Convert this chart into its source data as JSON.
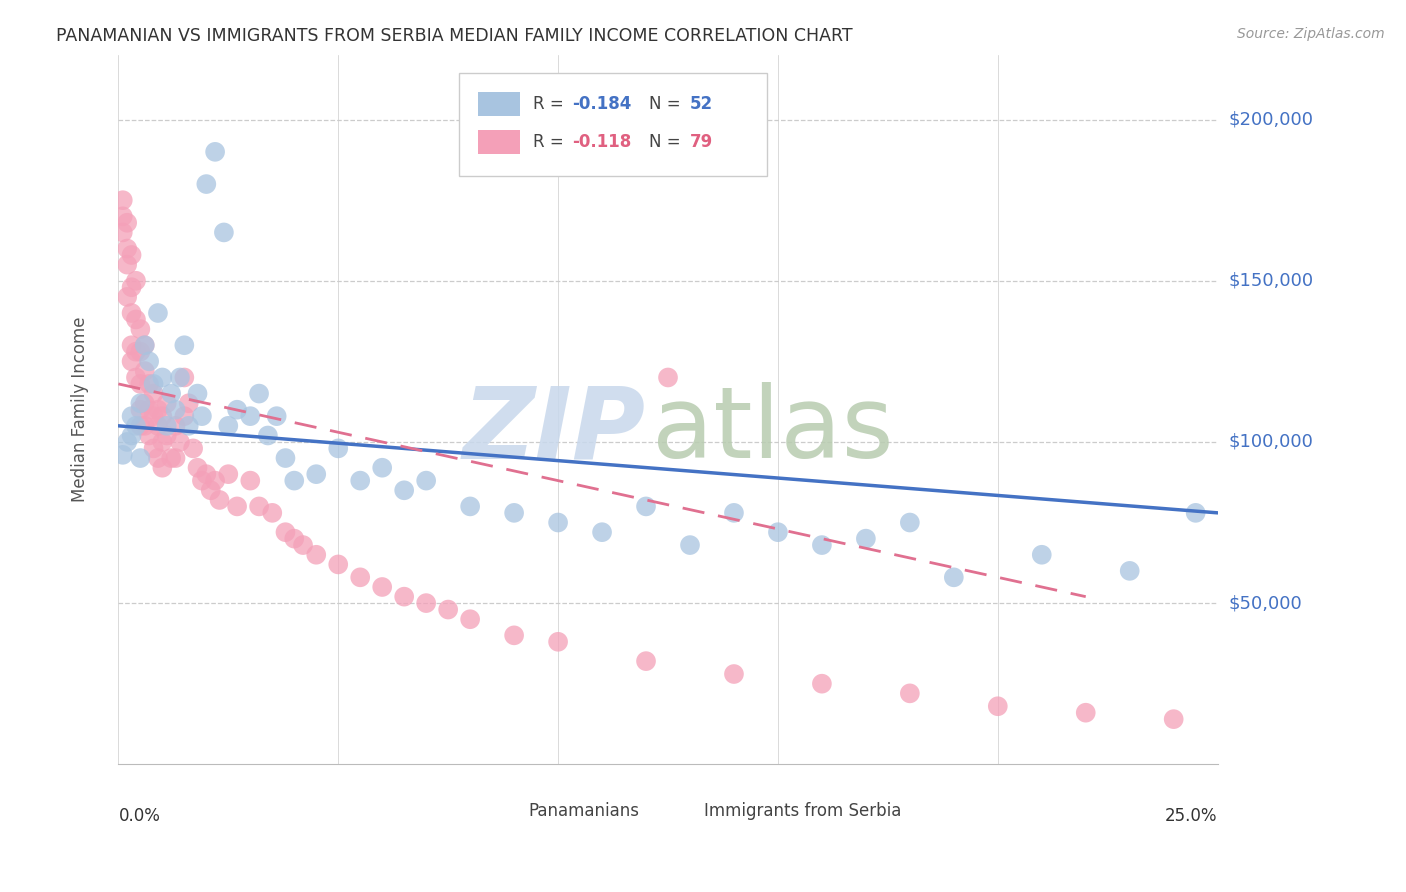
{
  "title": "PANAMANIAN VS IMMIGRANTS FROM SERBIA MEDIAN FAMILY INCOME CORRELATION CHART",
  "source": "Source: ZipAtlas.com",
  "ylabel": "Median Family Income",
  "ytick_labels": [
    "$50,000",
    "$100,000",
    "$150,000",
    "$200,000"
  ],
  "ytick_values": [
    50000,
    100000,
    150000,
    200000
  ],
  "xlim": [
    0.0,
    0.25
  ],
  "ylim": [
    0,
    220000
  ],
  "blue_color": "#a8c4e0",
  "pink_color": "#f4a0b8",
  "trendline_blue_color": "#4472c4",
  "trendline_pink_color": "#e07090",
  "watermark_zip_color": "#c8d8ec",
  "watermark_atlas_color": "#b8ccb0",
  "panamanian_x": [
    0.001,
    0.002,
    0.003,
    0.003,
    0.004,
    0.005,
    0.005,
    0.006,
    0.007,
    0.008,
    0.009,
    0.01,
    0.011,
    0.012,
    0.013,
    0.014,
    0.015,
    0.016,
    0.018,
    0.019,
    0.02,
    0.022,
    0.024,
    0.025,
    0.027,
    0.03,
    0.032,
    0.034,
    0.036,
    0.038,
    0.04,
    0.045,
    0.05,
    0.055,
    0.06,
    0.065,
    0.07,
    0.08,
    0.09,
    0.1,
    0.11,
    0.12,
    0.13,
    0.14,
    0.15,
    0.16,
    0.17,
    0.18,
    0.19,
    0.21,
    0.23,
    0.245
  ],
  "panamanian_y": [
    96000,
    100000,
    102000,
    108000,
    105000,
    95000,
    112000,
    130000,
    125000,
    118000,
    140000,
    120000,
    105000,
    115000,
    110000,
    120000,
    130000,
    105000,
    115000,
    108000,
    180000,
    190000,
    165000,
    105000,
    110000,
    108000,
    115000,
    102000,
    108000,
    95000,
    88000,
    90000,
    98000,
    88000,
    92000,
    85000,
    88000,
    80000,
    78000,
    75000,
    72000,
    80000,
    68000,
    78000,
    72000,
    68000,
    70000,
    75000,
    58000,
    65000,
    60000,
    78000
  ],
  "serbia_x": [
    0.001,
    0.001,
    0.001,
    0.002,
    0.002,
    0.002,
    0.002,
    0.003,
    0.003,
    0.003,
    0.003,
    0.003,
    0.004,
    0.004,
    0.004,
    0.004,
    0.005,
    0.005,
    0.005,
    0.005,
    0.005,
    0.006,
    0.006,
    0.006,
    0.006,
    0.007,
    0.007,
    0.007,
    0.008,
    0.008,
    0.008,
    0.009,
    0.009,
    0.009,
    0.01,
    0.01,
    0.01,
    0.011,
    0.011,
    0.012,
    0.013,
    0.013,
    0.014,
    0.015,
    0.015,
    0.016,
    0.017,
    0.018,
    0.019,
    0.02,
    0.021,
    0.022,
    0.023,
    0.025,
    0.027,
    0.03,
    0.032,
    0.035,
    0.038,
    0.04,
    0.042,
    0.045,
    0.05,
    0.055,
    0.06,
    0.065,
    0.07,
    0.075,
    0.08,
    0.09,
    0.1,
    0.12,
    0.14,
    0.16,
    0.18,
    0.2,
    0.22,
    0.24,
    0.125
  ],
  "serbia_y": [
    165000,
    170000,
    175000,
    155000,
    160000,
    168000,
    145000,
    158000,
    148000,
    140000,
    130000,
    125000,
    150000,
    138000,
    128000,
    120000,
    135000,
    128000,
    118000,
    110000,
    105000,
    130000,
    122000,
    112000,
    105000,
    118000,
    110000,
    102000,
    115000,
    108000,
    98000,
    110000,
    105000,
    95000,
    108000,
    100000,
    92000,
    112000,
    102000,
    95000,
    105000,
    95000,
    100000,
    120000,
    108000,
    112000,
    98000,
    92000,
    88000,
    90000,
    85000,
    88000,
    82000,
    90000,
    80000,
    88000,
    80000,
    78000,
    72000,
    70000,
    68000,
    65000,
    62000,
    58000,
    55000,
    52000,
    50000,
    48000,
    45000,
    40000,
    38000,
    32000,
    28000,
    25000,
    22000,
    18000,
    16000,
    14000,
    120000
  ],
  "trendline_blue_x0": 0.0,
  "trendline_blue_x1": 0.25,
  "trendline_blue_y0": 105000,
  "trendline_blue_y1": 78000,
  "trendline_pink_x0": 0.0,
  "trendline_pink_x1": 0.22,
  "trendline_pink_y0": 118000,
  "trendline_pink_y1": 52000
}
